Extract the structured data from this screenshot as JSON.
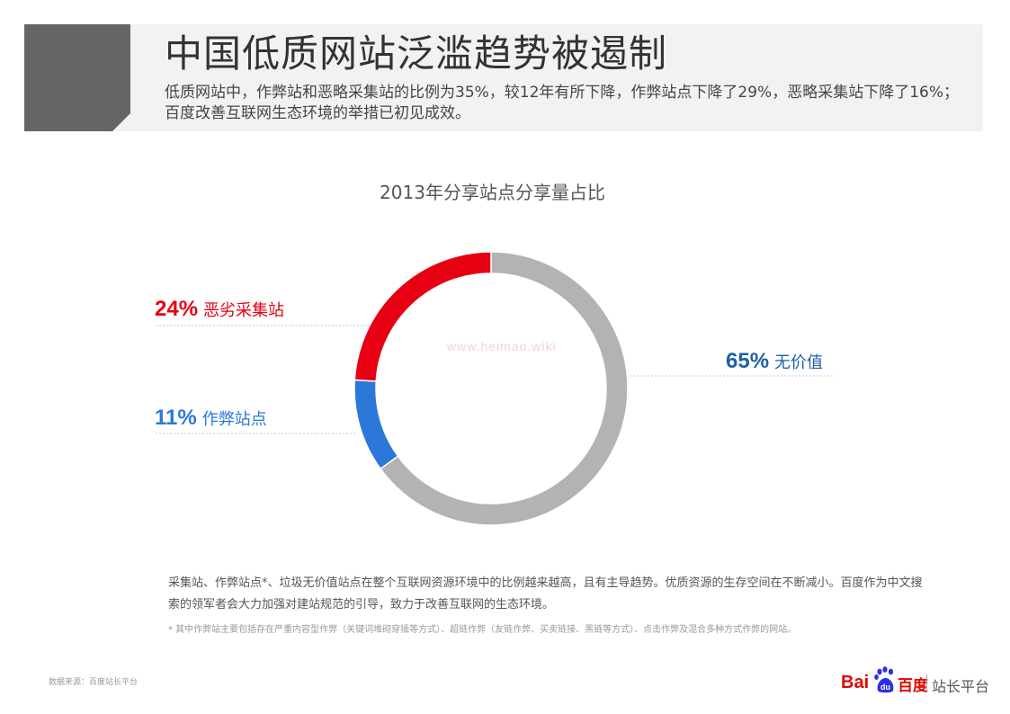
{
  "header": {
    "title": "中国低质网站泛滥趋势被遏制",
    "subtitle": "低质网站中，作弊站和恶略采集站的比例为35%，较12年有所下降，作弊站点下降了29%，恶略采集站下降了16%；百度改善互联网生态环境的举措已初见成效。",
    "accent_color": "#666666",
    "band_color": "#f2f2f2"
  },
  "chart_data": {
    "type": "pie",
    "title": "2013年分享站点分享量占比",
    "donut": true,
    "slices": [
      {
        "name": "无价值",
        "value": 65,
        "label": "65%",
        "color": "#b3b3b3",
        "label_color": "#1f5fa8"
      },
      {
        "name": "作弊站点",
        "value": 11,
        "label": "11%",
        "color": "#2b78d8",
        "label_color": "#2b78d8"
      },
      {
        "name": "恶劣采集站",
        "value": 24,
        "label": "24%",
        "color": "#e60012",
        "label_color": "#e60012"
      }
    ]
  },
  "watermark": "www.heimao.wiki",
  "note": "采集站、作弊站点*、垃圾无价值站点在整个互联网资源环境中的比例越来越高，且有主导趋势。优质资源的生存空间在不断减小。百度作为中文搜索的领军者会大力加强对建站规范的引导，致力于改善互联网的生态环境。",
  "footnote": "* 其中作弊站主要包括存在严重内容型作弊（关键词堆砌穿插等方式）、超链作弊（友链作弊、买卖链接、黑链等方式）、点击作弊及混合多种方式作弊的网站。",
  "source": "数据来源：百度站长平台",
  "logo": {
    "bai": "Bai",
    "paw_text": "du",
    "baidu": "百度",
    "platform": "站长平台",
    "brand_color": "#e10602",
    "paw_color": "#2932e1"
  }
}
